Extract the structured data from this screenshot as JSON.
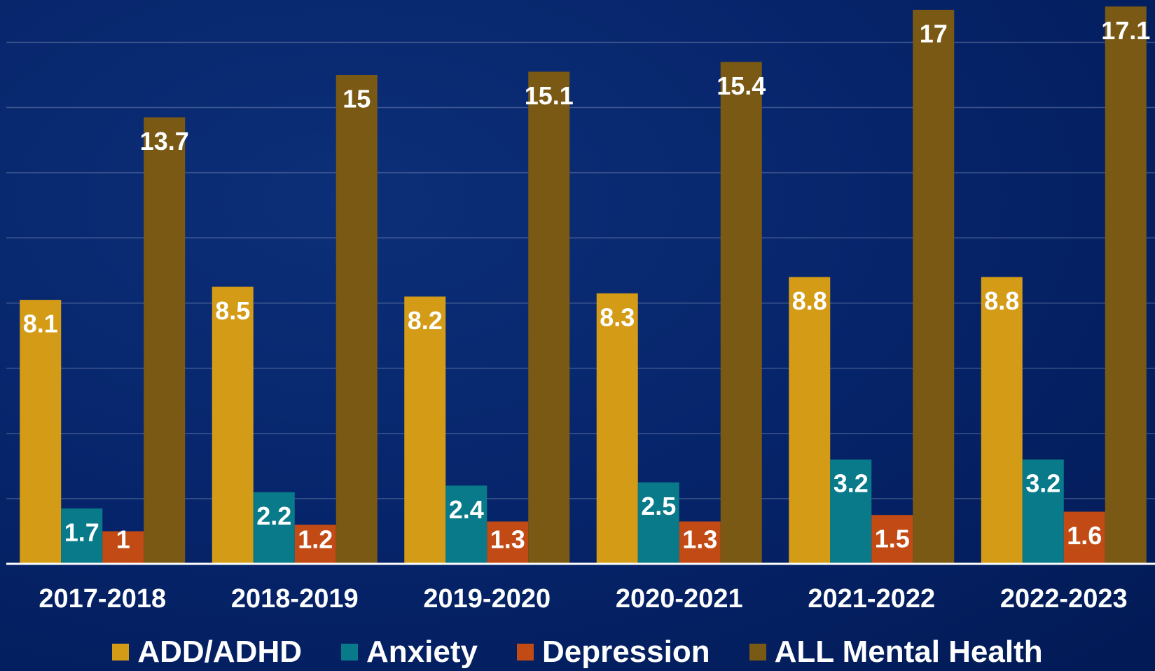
{
  "chart_data": {
    "type": "bar",
    "categories": [
      "2017-2018",
      "2018-2019",
      "2019-2020",
      "2020-2021",
      "2021-2022",
      "2022-2023"
    ],
    "series": [
      {
        "name": "ADD/ADHD",
        "color": "#d39b16",
        "values": [
          8.1,
          8.5,
          8.2,
          8.3,
          8.8,
          8.8
        ]
      },
      {
        "name": "Anxiety",
        "color": "#087a8a",
        "values": [
          1.7,
          2.2,
          2.4,
          2.5,
          3.2,
          3.2
        ]
      },
      {
        "name": "Depression",
        "color": "#c24a14",
        "values": [
          1,
          1.2,
          1.3,
          1.3,
          1.5,
          1.6
        ]
      },
      {
        "name": "ALL Mental Health",
        "color": "#7a5914",
        "values": [
          13.7,
          15,
          15.1,
          15.4,
          17,
          17.1
        ]
      }
    ],
    "ylim": [
      0,
      17.3
    ],
    "yticks": [
      0,
      2,
      4,
      6,
      8,
      10,
      12,
      14,
      16
    ],
    "grid": true,
    "legend": "bottom"
  }
}
